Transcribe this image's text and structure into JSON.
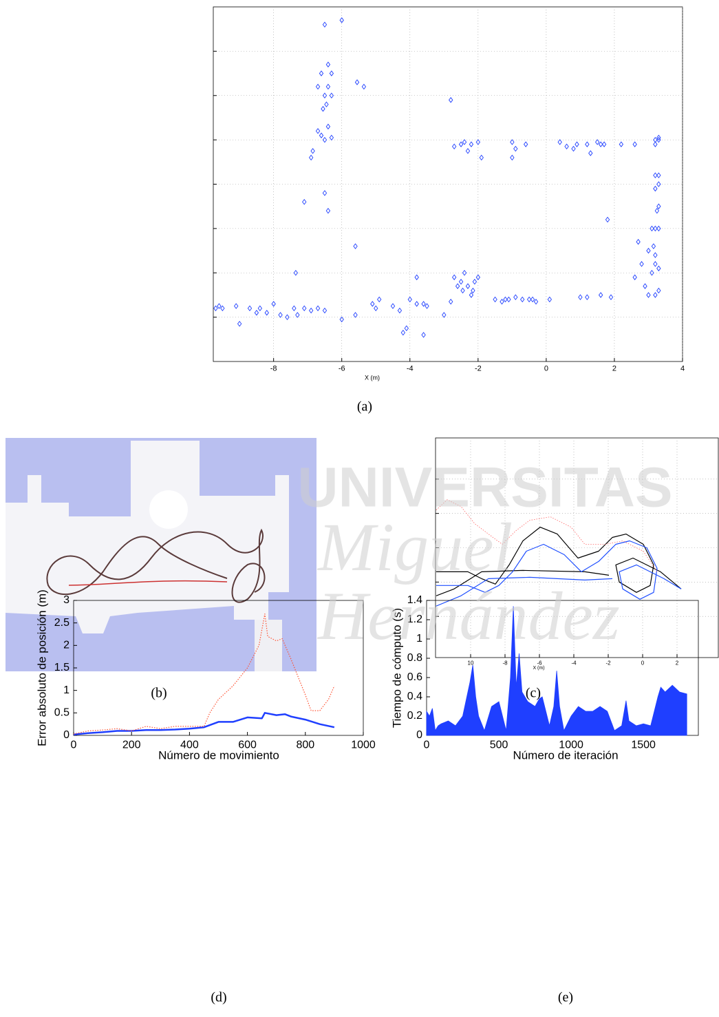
{
  "figure": {
    "captions": [
      "(a)",
      "(b)",
      "(c)",
      "(d)",
      "(e)"
    ],
    "watermark": [
      "UNIVERSITAS",
      "Miguel",
      "Hernández"
    ]
  },
  "chart_data": [
    {
      "type": "scatter",
      "xlabel": "X (m)",
      "color": "#1f3fff",
      "marker": "diamond",
      "grid": true,
      "ytick_labels": false,
      "xlim": [
        -9.77,
        4
      ],
      "ylim": [
        -1,
        7
      ],
      "xticks": [
        -8,
        -6,
        -4,
        -2,
        0,
        2,
        4
      ],
      "yticks": [
        0,
        1,
        2,
        3,
        4,
        5,
        6
      ],
      "x": [
        -9.7,
        -9.6,
        -9.5,
        -9.1,
        -9.0,
        -8.7,
        -8.5,
        -8.4,
        -8.2,
        -8.0,
        -7.8,
        -7.6,
        -7.4,
        -7.3,
        -7.1,
        -6.9,
        -6.7,
        -6.5,
        -6.0,
        -5.6,
        -5.1,
        -5.0,
        -4.9,
        -4.5,
        -4.3,
        -4.0,
        -3.8,
        -3.6,
        -3.5,
        -3.0,
        -2.8,
        -4.1,
        -4.2,
        -3.6,
        -3.8,
        -2.7,
        -2.5,
        -2.4,
        -2.3,
        -2.2,
        -2.1,
        -2.45,
        -2.15,
        -2.0,
        -2.6,
        -1.5,
        -1.3,
        -1.1,
        -0.9,
        -0.7,
        -0.5,
        -0.3,
        0.1,
        1.0,
        1.2,
        1.6,
        1.9,
        -1.2,
        -0.4,
        3.2,
        3.3,
        3.1,
        3.3,
        3.2,
        3.2,
        3.15,
        3.0,
        3.2,
        3.3,
        3.1,
        3.25,
        3.3,
        3.2,
        3.3,
        3.2,
        3.3,
        3.2,
        3.3,
        2.8,
        2.9,
        3.0,
        2.6,
        2.7,
        1.8,
        -2.7,
        -2.5,
        -2.4,
        -2.2,
        -2.0,
        -1.9,
        -2.3,
        -1.0,
        -0.9,
        -0.6,
        0.4,
        0.6,
        0.8,
        0.9,
        1.2,
        1.5,
        1.6,
        1.7,
        2.2,
        2.6,
        3.2,
        3.3,
        -2.8,
        1.3,
        -1.0,
        -6.5,
        -6.0,
        -6.4,
        -6.6,
        -6.3,
        -6.5,
        -6.4,
        -6.3,
        -6.45,
        -6.7,
        -6.6,
        -6.5,
        -6.4,
        -6.3,
        -6.85,
        -6.9,
        -6.5,
        -6.4,
        -7.1,
        -5.6,
        -5.55,
        -5.35,
        -7.35,
        -6.7,
        -6.55
      ],
      "values": [
        0.2,
        0.25,
        0.2,
        0.25,
        -0.15,
        0.2,
        0.1,
        0.2,
        0.1,
        0.3,
        0.05,
        0.0,
        0.2,
        0.05,
        0.2,
        0.15,
        0.2,
        0.15,
        -0.05,
        0.05,
        0.3,
        0.2,
        0.4,
        0.25,
        0.15,
        0.4,
        0.3,
        0.3,
        0.25,
        0.05,
        0.35,
        -0.25,
        -0.35,
        -0.4,
        0.9,
        0.9,
        0.8,
        1.0,
        0.7,
        0.5,
        0.8,
        0.6,
        0.6,
        0.9,
        0.7,
        0.4,
        0.35,
        0.4,
        0.45,
        0.4,
        0.4,
        0.35,
        0.4,
        0.45,
        0.45,
        0.5,
        0.45,
        0.4,
        0.4,
        0.5,
        0.6,
        1.0,
        1.1,
        1.2,
        1.4,
        1.6,
        1.5,
        2.0,
        2.0,
        2.0,
        2.4,
        2.5,
        2.9,
        3.0,
        3.2,
        3.2,
        3.9,
        4.0,
        1.2,
        0.7,
        0.5,
        0.9,
        1.7,
        2.2,
        3.85,
        3.9,
        3.95,
        3.9,
        3.95,
        3.6,
        3.75,
        3.95,
        3.8,
        3.9,
        3.95,
        3.85,
        3.8,
        3.9,
        3.9,
        3.95,
        3.9,
        3.9,
        3.9,
        3.9,
        4.0,
        4.05,
        4.9,
        3.7,
        3.6,
        6.6,
        6.7,
        5.7,
        5.5,
        5.5,
        5.0,
        5.2,
        5.0,
        4.8,
        4.2,
        4.1,
        4.0,
        4.3,
        4.05,
        3.75,
        3.6,
        2.8,
        2.4,
        2.6,
        1.6,
        5.3,
        5.2,
        1.0,
        5.2,
        4.7
      ]
    },
    {
      "type": "line",
      "xlabel": "X (m)",
      "grid": true,
      "ytick_labels": false,
      "xlim": [
        -12.04,
        4.4
      ],
      "ylim": [
        -3.2,
        3.2
      ],
      "xticks": [
        {
          "value": -10,
          "label": "10"
        },
        -8,
        -6,
        -4,
        -2,
        0,
        2
      ],
      "yticks": [
        -2,
        -1,
        0,
        1,
        2
      ],
      "series": [
        {
          "color": "#000000",
          "linewidth": 1.2,
          "x": [
            -12,
            -10.16,
            -9.36,
            -8.56,
            -7.76,
            -6.96,
            -5.96,
            -4.96,
            -3.76,
            -2.56,
            -1.76,
            -0.96,
            0.04,
            0.64,
            0.44,
            -0.36,
            -1.36,
            -1.56,
            -0.56,
            1.04,
            2.24,
            null,
            -12,
            -10.96,
            -9.36,
            -6.96,
            -3.36,
            -1.96
          ],
          "values": [
            -0.7,
            -0.7,
            -0.9,
            -1.06,
            -0.5,
            0.2,
            0.6,
            0.4,
            -0.3,
            -0.1,
            0.3,
            0.4,
            0.1,
            -0.5,
            -1.1,
            -1.3,
            -1.0,
            -0.5,
            -0.3,
            -0.7,
            -1.2,
            null,
            -1.4,
            -1.2,
            -0.7,
            -0.66,
            -0.7,
            -0.8
          ]
        },
        {
          "color": "#1f4fff",
          "linewidth": 1.2,
          "x": [
            -12,
            -10.16,
            -9.16,
            -8.36,
            -7.56,
            -6.76,
            -5.76,
            -4.56,
            -3.56,
            -2.56,
            -1.56,
            -0.76,
            0.24,
            0.84,
            0.64,
            -0.16,
            -1.16,
            -1.36,
            -0.36,
            1.24,
            2.24,
            null,
            -12,
            -10.56,
            -8.96,
            -6.56,
            -3.36,
            -1.76
          ],
          "values": [
            -1.1,
            -1.1,
            -1.3,
            -1.1,
            -0.7,
            -0.1,
            0.1,
            -0.2,
            -0.7,
            -0.4,
            0.1,
            0.2,
            0,
            -0.6,
            -1.3,
            -1.5,
            -1.2,
            -0.7,
            -0.5,
            -0.9,
            -1.2,
            null,
            -1.7,
            -1.4,
            -0.9,
            -0.86,
            -0.94,
            -0.9
          ]
        },
        {
          "color": "#ff6060",
          "linewidth": 0.8,
          "linestyle": "dotted",
          "x": [
            -12,
            -11.36,
            -10.56,
            -9.76,
            -8.96,
            -8.16,
            -7.36,
            -6.56,
            -5.36,
            -4.16,
            -3.36,
            -2.16,
            -1.16,
            0.04,
            0.84
          ],
          "values": [
            1.1,
            1.4,
            1.2,
            0.7,
            0.4,
            0.1,
            0.5,
            0.8,
            0.9,
            0.6,
            0.1,
            0.1,
            0.2,
            -0.1,
            -0.7
          ]
        }
      ]
    },
    {
      "type": "line",
      "xlabel": "Número de movimiento",
      "ylabel": "Error absoluto de posición (m)",
      "grid": false,
      "xlim": [
        0,
        1000
      ],
      "ylim": [
        0,
        3
      ],
      "xticks": [
        0,
        200,
        400,
        600,
        800,
        1000
      ],
      "yticks": [
        0,
        0.5,
        1,
        1.5,
        2,
        2.5,
        3
      ],
      "series": [
        {
          "color": "#1f3fff",
          "linewidth": 2.5,
          "x": [
            0,
            50,
            100,
            150,
            200,
            250,
            300,
            350,
            400,
            450,
            500,
            550,
            600,
            650,
            660,
            700,
            730,
            750,
            800,
            850,
            900
          ],
          "values": [
            0.02,
            0.05,
            0.07,
            0.1,
            0.1,
            0.12,
            0.12,
            0.13,
            0.15,
            0.18,
            0.3,
            0.3,
            0.4,
            0.38,
            0.5,
            0.45,
            0.47,
            0.42,
            0.35,
            0.25,
            0.18
          ]
        },
        {
          "color": "#ff5030",
          "linewidth": 1.2,
          "linestyle": "dotted",
          "x": [
            0,
            50,
            100,
            150,
            200,
            250,
            300,
            350,
            400,
            450,
            470,
            500,
            550,
            600,
            640,
            660,
            670,
            700,
            720,
            750,
            800,
            820,
            850,
            880,
            900
          ],
          "values": [
            0.03,
            0.1,
            0.12,
            0.15,
            0.1,
            0.2,
            0.15,
            0.2,
            0.2,
            0.2,
            0.5,
            0.8,
            1.1,
            1.5,
            2.0,
            2.7,
            2.2,
            2.1,
            2.15,
            1.7,
            0.9,
            0.55,
            0.55,
            0.8,
            1.1
          ]
        }
      ]
    },
    {
      "type": "area",
      "xlabel": "Número de iteración",
      "ylabel": "Tiempo de cómputo (s)",
      "grid": false,
      "color": "#1f3fff",
      "xlim": [
        0,
        1880
      ],
      "ylim": [
        0,
        1.4
      ],
      "xticks": [
        0,
        500,
        1000,
        1500
      ],
      "yticks": [
        0,
        0.2,
        0.4,
        0.6,
        0.8,
        1,
        1.2,
        1.4
      ],
      "x": [
        0,
        20,
        40,
        60,
        80,
        100,
        150,
        200,
        250,
        300,
        320,
        340,
        360,
        400,
        450,
        500,
        550,
        580,
        600,
        620,
        640,
        660,
        700,
        750,
        780,
        800,
        850,
        880,
        900,
        920,
        950,
        1000,
        1050,
        1100,
        1150,
        1200,
        1250,
        1300,
        1350,
        1380,
        1400,
        1450,
        1500,
        1550,
        1600,
        1620,
        1650,
        1700,
        1750,
        1800
      ],
      "values": [
        0.25,
        0.2,
        0.28,
        0.05,
        0.1,
        0.12,
        0.15,
        0.1,
        0.2,
        0.55,
        0.73,
        0.4,
        0.2,
        0.05,
        0.3,
        0.35,
        0.05,
        0.6,
        1.34,
        0.5,
        0.85,
        0.45,
        0.35,
        0.3,
        0.38,
        0.4,
        0.1,
        0.3,
        0.67,
        0.3,
        0.05,
        0.2,
        0.3,
        0.25,
        0.25,
        0.3,
        0.25,
        0.05,
        0.1,
        0.36,
        0.15,
        0.1,
        0.12,
        0.1,
        0.4,
        0.5,
        0.45,
        0.52,
        0.45,
        0.43
      ]
    }
  ]
}
